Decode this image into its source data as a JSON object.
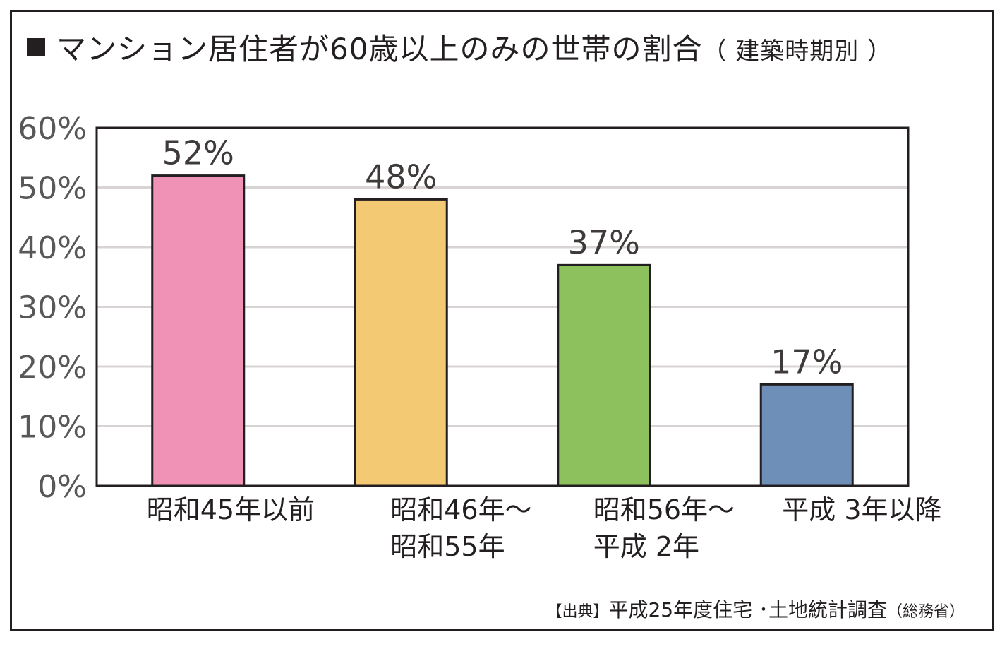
{
  "title": {
    "main": "マンション居住者が60歳以上のみの世帯の割合",
    "sub": "（ 建築時期別 ）"
  },
  "source": {
    "bracket": "【出典】",
    "text": "平成25年度住宅 ･土地統計調査",
    "org": "（総務省）"
  },
  "chart_data": {
    "type": "bar",
    "categories": [
      [
        "昭和45年以前"
      ],
      [
        "昭和46年～",
        "昭和55年"
      ],
      [
        "昭和56年～",
        "平成 2年"
      ],
      [
        "平成 3年以降"
      ]
    ],
    "values": [
      52,
      48,
      37,
      17
    ],
    "value_labels": [
      "52%",
      "48%",
      "37%",
      "17%"
    ],
    "colors": [
      "#f092b6",
      "#f4c973",
      "#8cc15e",
      "#6d8fb8"
    ],
    "ylim": [
      0,
      60
    ],
    "yticks": [
      0,
      10,
      20,
      30,
      40,
      50,
      60
    ],
    "ytick_labels": [
      "0%",
      "10%",
      "20%",
      "30%",
      "40%",
      "50%",
      "60%"
    ],
    "grid": true,
    "gridline_color": "#d9d4d4"
  }
}
